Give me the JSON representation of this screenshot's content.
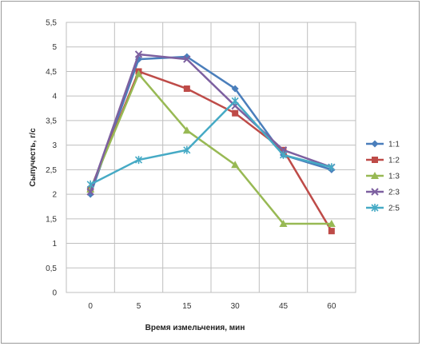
{
  "chart_data": {
    "type": "line",
    "title": "",
    "xlabel": "Время измельчения, мин",
    "ylabel": "Сыпучесть, г/с",
    "categories": [
      "0",
      "5",
      "15",
      "30",
      "45",
      "60"
    ],
    "ylim": [
      0,
      5.5
    ],
    "yticks": [
      "0",
      "0,5",
      "1",
      "1,5",
      "2",
      "2,5",
      "3",
      "3,5",
      "4",
      "4,5",
      "5",
      "5,5"
    ],
    "grid": true,
    "legend_position": "right",
    "series": [
      {
        "name": "1:1",
        "color": "#4a7ebb",
        "marker": "diamond",
        "values": [
          2.0,
          4.75,
          4.8,
          4.15,
          2.8,
          2.5
        ]
      },
      {
        "name": "1:2",
        "color": "#be4b48",
        "marker": "square",
        "values": [
          2.1,
          4.5,
          4.15,
          3.65,
          2.9,
          1.25
        ]
      },
      {
        "name": "1:3",
        "color": "#98b954",
        "marker": "triangle",
        "values": [
          2.1,
          4.45,
          3.3,
          2.6,
          1.4,
          1.4
        ]
      },
      {
        "name": "2:3",
        "color": "#7d60a0",
        "marker": "x",
        "values": [
          2.05,
          4.85,
          4.75,
          3.8,
          2.9,
          2.55
        ]
      },
      {
        "name": "2:5",
        "color": "#46aac5",
        "marker": "star",
        "values": [
          2.2,
          2.7,
          2.9,
          3.9,
          2.8,
          2.55
        ]
      }
    ]
  }
}
